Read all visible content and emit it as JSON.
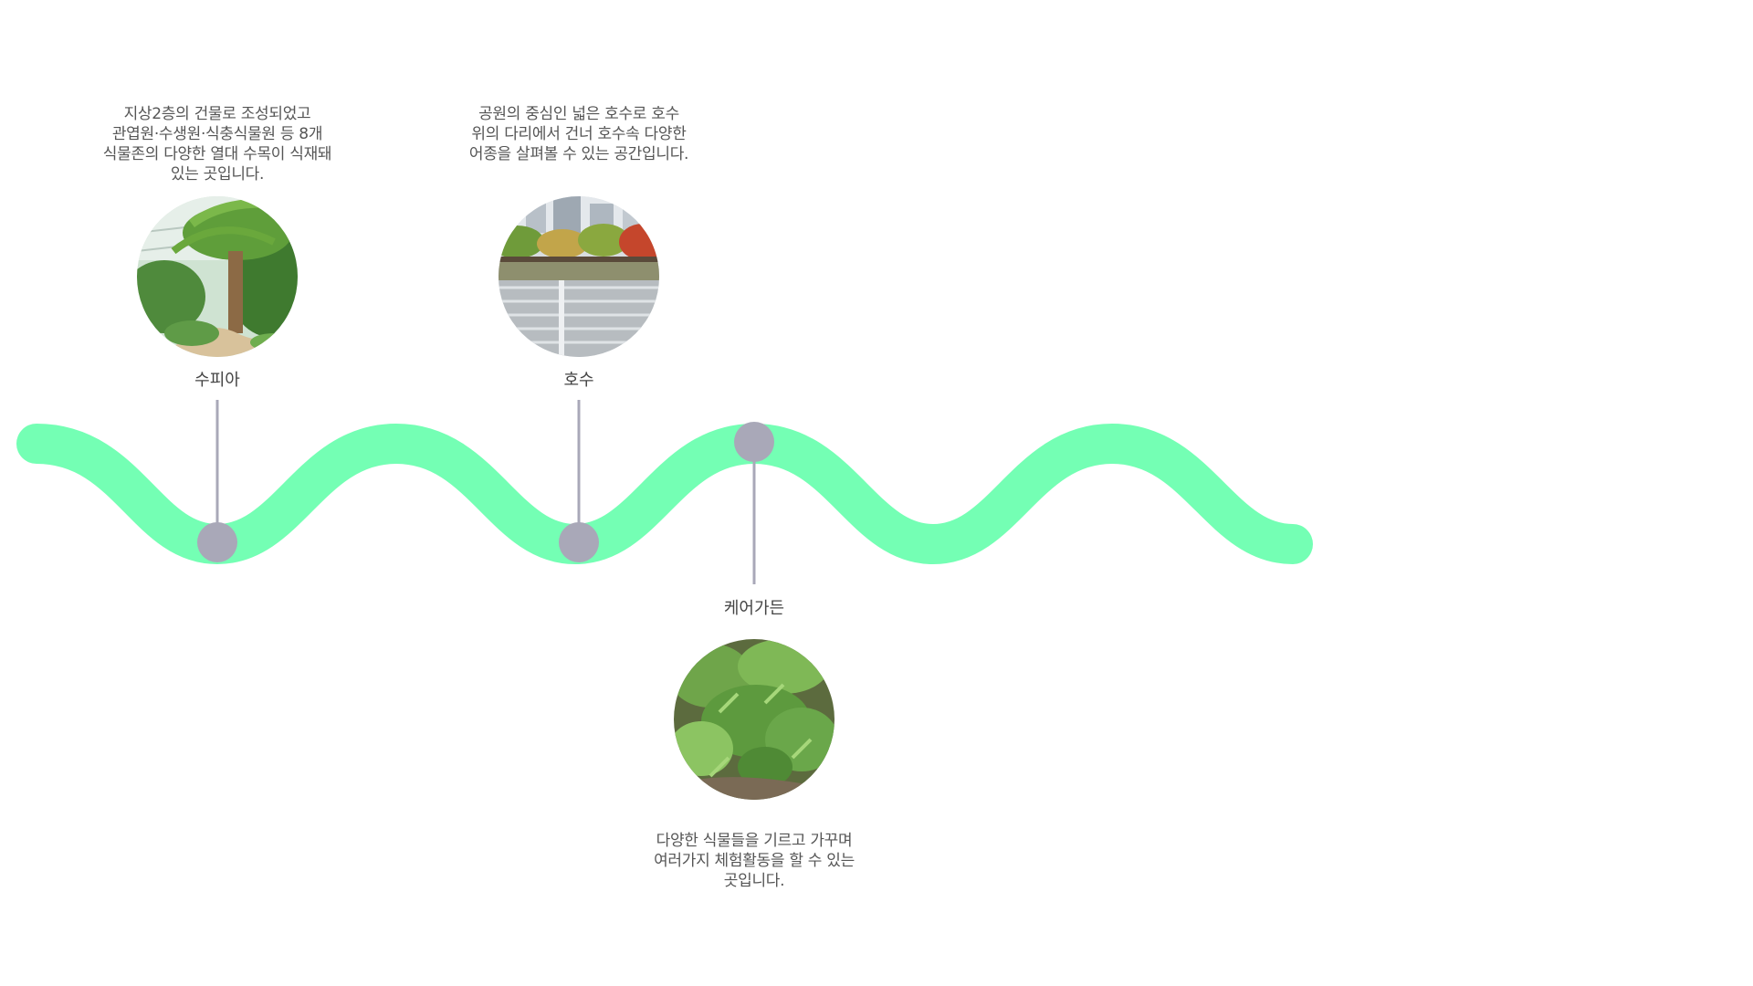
{
  "stops": [
    {
      "label": "수피아",
      "description": "지상2층의 건물로 조성되었고\n관엽원·수생원·식충식물원 등 8개\n식물존의 다양한 열대 수목이 식재돼\n있는 곳입니다.",
      "photo_icon": "greenhouse-photo"
    },
    {
      "label": "호수",
      "description": "공원의 중심인 넓은 호수로 호수\n위의 다리에서 건너 호수속 다양한\n어종을 살펴볼 수 있는 공간입니다.",
      "photo_icon": "lake-photo"
    },
    {
      "label": "케어가든",
      "description": "다양한 식물들을 기르고 가꾸며\n여러가지 체험활동을 할 수 있는\n곳입니다.",
      "photo_icon": "garden-photo"
    }
  ],
  "colors": {
    "wave": "#74ffb4",
    "marker": "#a9a8b8",
    "connector": "#a9a8b8",
    "text": "#555555"
  }
}
